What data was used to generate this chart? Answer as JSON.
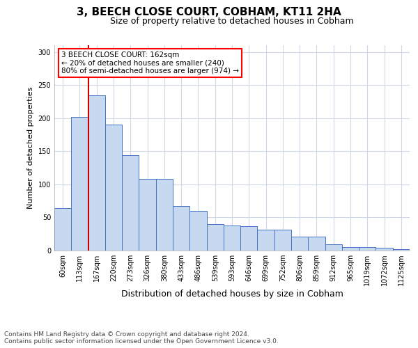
{
  "title1": "3, BEECH CLOSE COURT, COBHAM, KT11 2HA",
  "title2": "Size of property relative to detached houses in Cobham",
  "xlabel": "Distribution of detached houses by size in Cobham",
  "ylabel": "Number of detached properties",
  "categories": [
    "60sqm",
    "113sqm",
    "167sqm",
    "220sqm",
    "273sqm",
    "326sqm",
    "380sqm",
    "433sqm",
    "486sqm",
    "539sqm",
    "593sqm",
    "646sqm",
    "699sqm",
    "752sqm",
    "806sqm",
    "859sqm",
    "912sqm",
    "965sqm",
    "1019sqm",
    "1072sqm",
    "1125sqm"
  ],
  "values": [
    64,
    202,
    234,
    190,
    144,
    108,
    108,
    67,
    60,
    40,
    38,
    37,
    32,
    32,
    21,
    21,
    9,
    5,
    5,
    4,
    2
  ],
  "bar_color": "#c6d9f0",
  "bar_edge_color": "#4472c4",
  "annotation_line1": "3 BEECH CLOSE COURT: 162sqm",
  "annotation_line2": "← 20% of detached houses are smaller (240)",
  "annotation_line3": "80% of semi-detached houses are larger (974) →",
  "vline_color": "#cc0000",
  "ylim": [
    0,
    310
  ],
  "yticks": [
    0,
    50,
    100,
    150,
    200,
    250,
    300
  ],
  "footer1": "Contains HM Land Registry data © Crown copyright and database right 2024.",
  "footer2": "Contains public sector information licensed under the Open Government Licence v3.0.",
  "background_color": "#ffffff",
  "grid_color": "#d0d8e8",
  "title1_fontsize": 11,
  "title2_fontsize": 9,
  "xlabel_fontsize": 9,
  "ylabel_fontsize": 8,
  "tick_fontsize": 7,
  "footer_fontsize": 6.5,
  "annot_fontsize": 7.5
}
